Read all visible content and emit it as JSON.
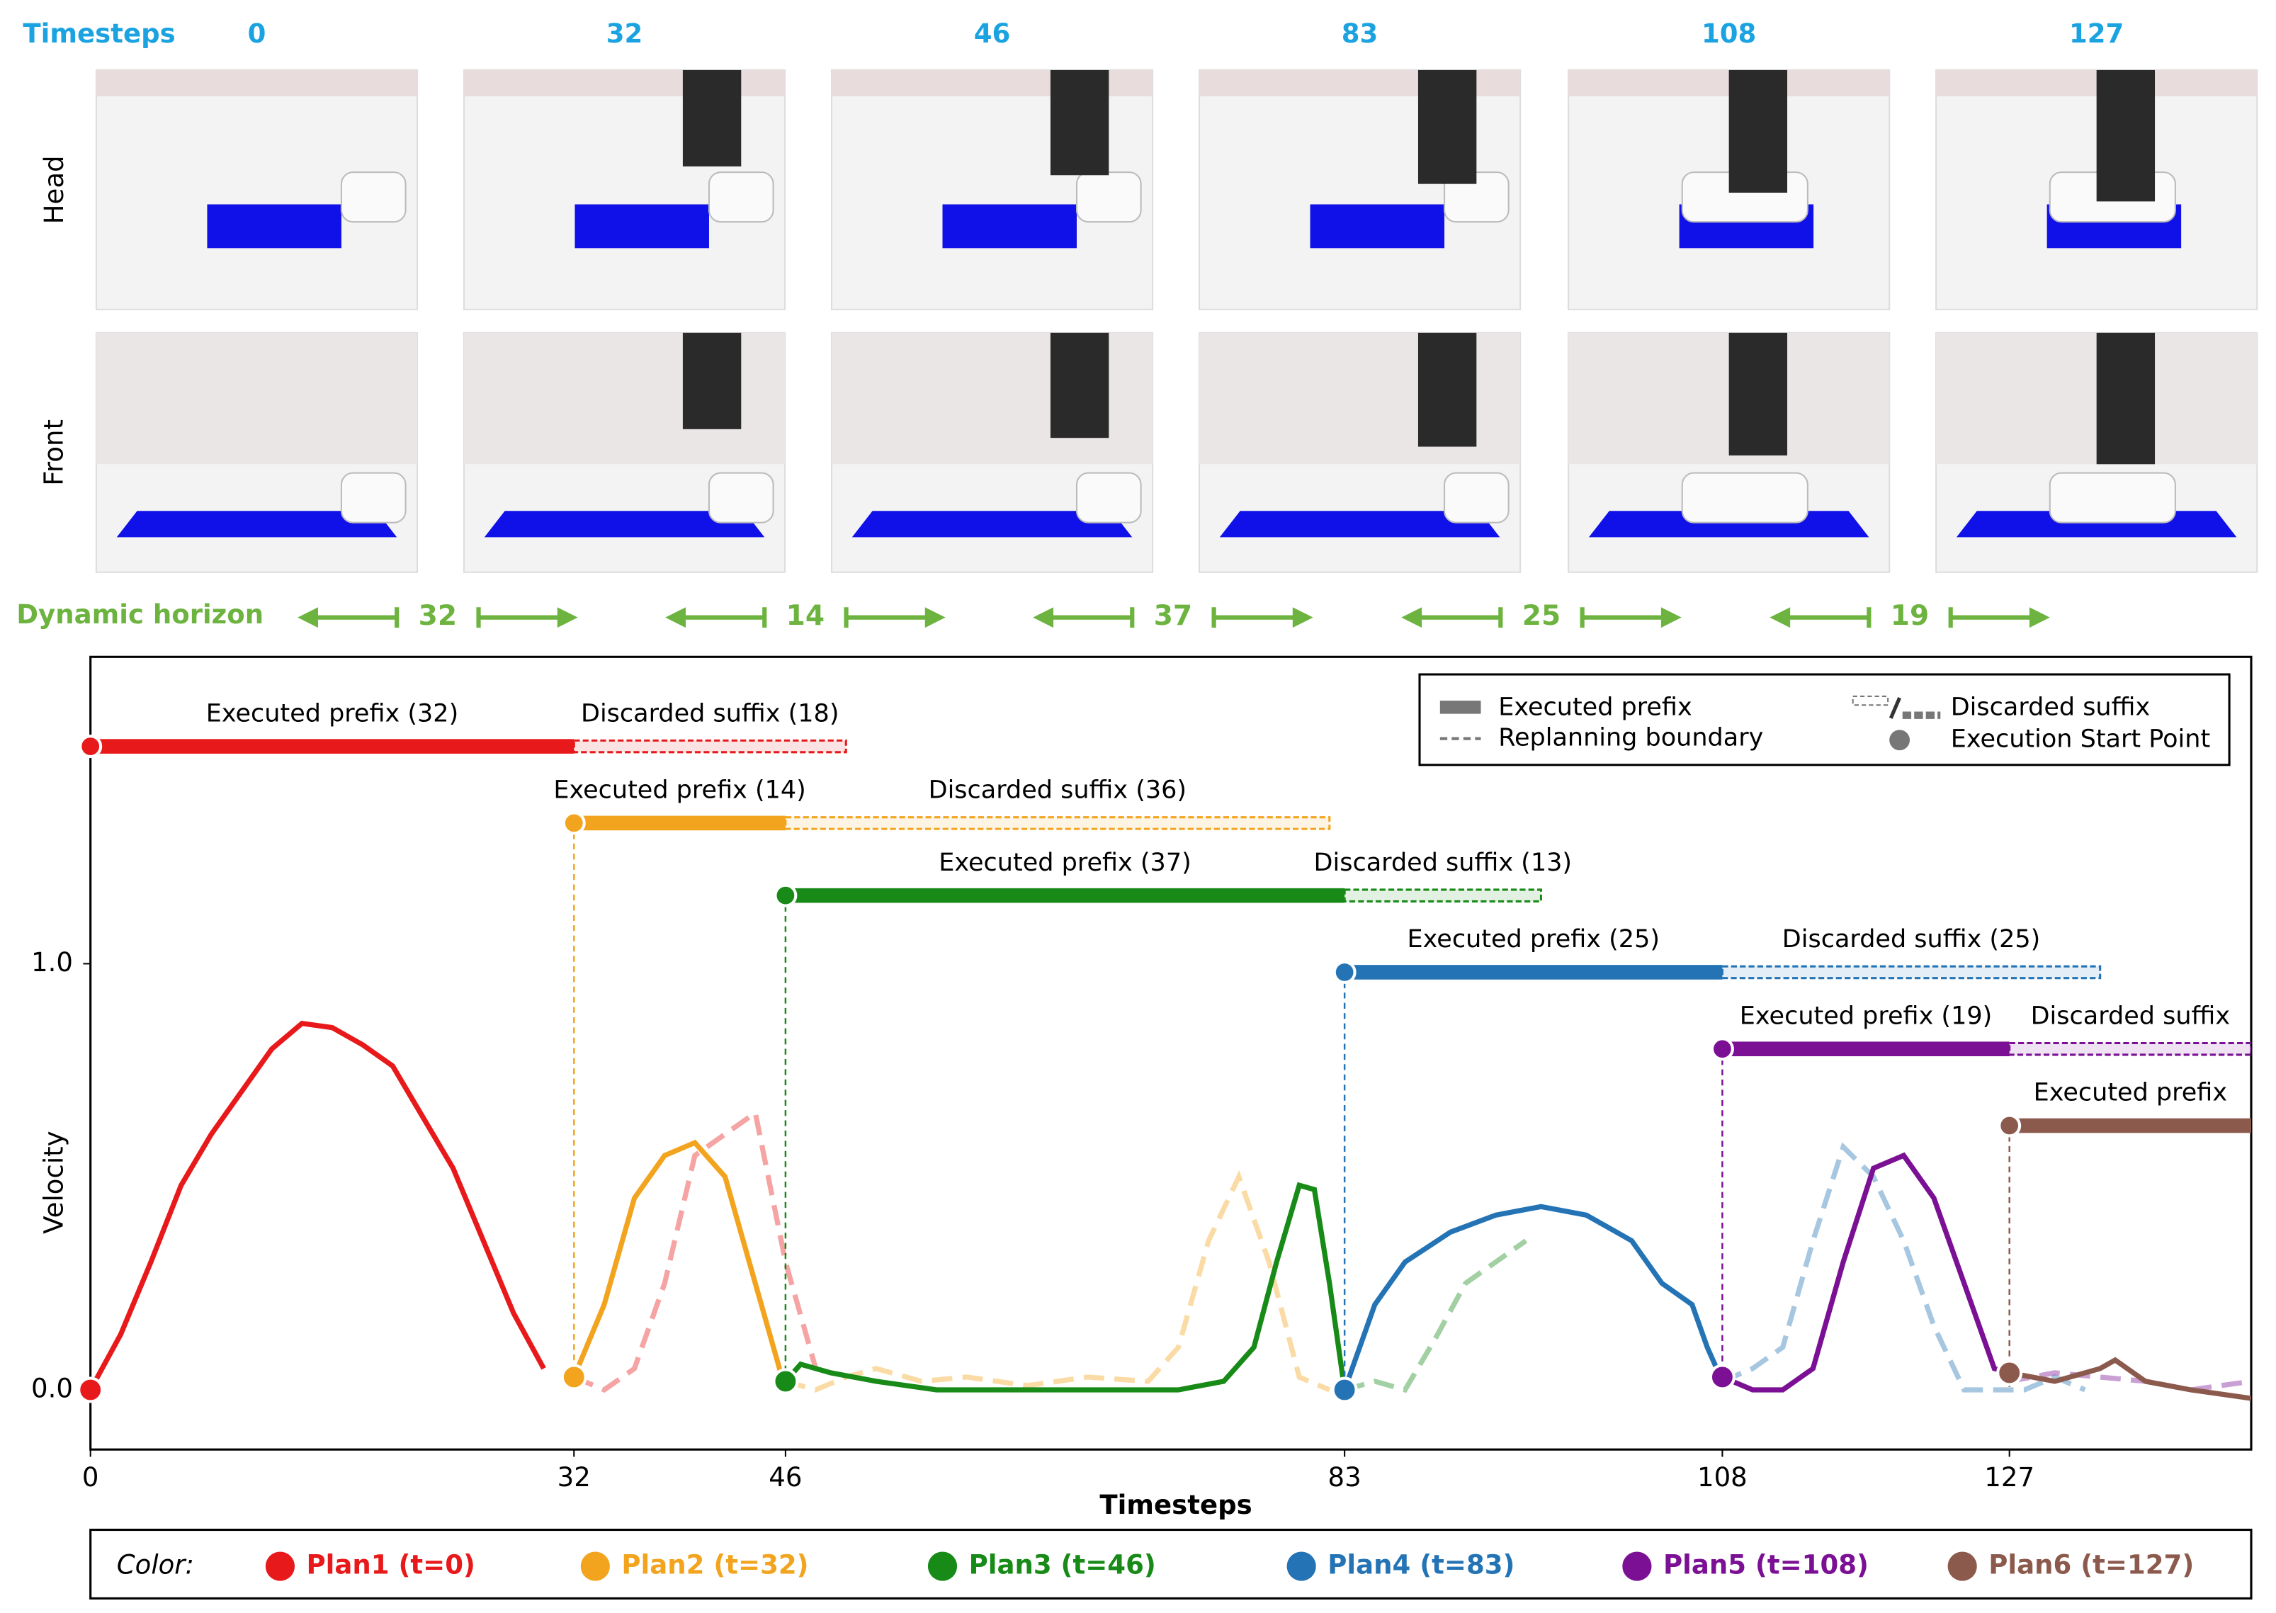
{
  "header": {
    "label": "Timesteps",
    "timesteps": [
      0,
      32,
      46,
      83,
      108,
      127
    ],
    "rows": [
      "Head",
      "Front"
    ]
  },
  "horizon": {
    "label": "Dynamic horizon",
    "values": [
      32,
      14,
      37,
      25,
      19
    ]
  },
  "chart_data": {
    "type": "line",
    "x_label": "Timesteps",
    "y_label": "Velocity",
    "xlim": [
      0,
      143
    ],
    "ylim": [
      -0.14,
      1.72
    ],
    "xticks": [
      0,
      32,
      46,
      83,
      108,
      127
    ],
    "yticks": [
      {
        "value": 0,
        "label": "0.0"
      },
      {
        "value": 1,
        "label": "1.0"
      }
    ],
    "legend": [
      "Executed prefix",
      "Replanning boundary",
      "Discarded suffix",
      "Execution Start Point"
    ],
    "color_legend_label": "Color:",
    "series": [
      {
        "name": "Plan1 (t=0)",
        "color": "#e8191a",
        "start": 0,
        "level": 1.51,
        "prefix": 32,
        "suffix": 18,
        "prefix_label": "Executed prefix (32)",
        "suffix_label": "Discarded suffix (18)",
        "x": [
          0,
          2,
          4,
          6,
          8,
          10,
          12,
          14,
          16,
          18,
          20,
          22,
          24,
          26,
          28,
          30
        ],
        "values": [
          0,
          0.13,
          0.3,
          0.48,
          0.6,
          0.7,
          0.8,
          0.86,
          0.85,
          0.81,
          0.76,
          0.64,
          0.52,
          0.35,
          0.18,
          0.05
        ],
        "discarded_x": [
          32,
          34,
          36,
          38,
          40,
          42,
          44,
          46,
          48
        ],
        "discarded_values": [
          0.03,
          0,
          0.05,
          0.25,
          0.55,
          0.6,
          0.65,
          0.3,
          0.05
        ]
      },
      {
        "name": "Plan2 (t=32)",
        "color": "#f2a41f",
        "start": 32,
        "level": 1.33,
        "prefix": 14,
        "suffix": 36,
        "prefix_label": "Executed prefix (14)",
        "suffix_label": "Discarded suffix (36)",
        "x": [
          32,
          34,
          36,
          38,
          40,
          42,
          44,
          46
        ],
        "values": [
          0.03,
          0.2,
          0.45,
          0.55,
          0.58,
          0.5,
          0.25,
          0
        ],
        "discarded_x": [
          46,
          48,
          50,
          52,
          55,
          58,
          62,
          66,
          70,
          72,
          74,
          76,
          78,
          80,
          82
        ],
        "discarded_values": [
          0.02,
          0,
          0.03,
          0.05,
          0.02,
          0.03,
          0.01,
          0.03,
          0.02,
          0.1,
          0.35,
          0.5,
          0.3,
          0.03,
          0
        ]
      },
      {
        "name": "Plan3 (t=46)",
        "color": "#178a17",
        "start": 46,
        "level": 1.16,
        "prefix": 37,
        "suffix": 13,
        "prefix_label": "Executed prefix (37)",
        "suffix_label": "Discarded suffix (13)",
        "x": [
          46,
          47,
          49,
          52,
          56,
          62,
          68,
          72,
          75,
          77,
          78.5,
          80,
          81,
          82,
          83
        ],
        "values": [
          0.02,
          0.06,
          0.04,
          0.02,
          0,
          0,
          0,
          0,
          0.02,
          0.1,
          0.3,
          0.48,
          0.47,
          0.25,
          0
        ],
        "discarded_x": [
          83,
          85,
          87,
          89,
          91,
          93,
          95
        ],
        "discarded_values": [
          0,
          0.02,
          0,
          0.12,
          0.25,
          0.3,
          0.35
        ]
      },
      {
        "name": "Plan4 (t=83)",
        "color": "#2474b5",
        "start": 83,
        "level": 0.98,
        "prefix": 25,
        "suffix": 25,
        "prefix_label": "Executed prefix (25)",
        "suffix_label": "Discarded suffix (25)",
        "x": [
          83,
          85,
          87,
          90,
          93,
          96,
          99,
          102,
          104,
          106,
          107,
          108
        ],
        "values": [
          0,
          0.2,
          0.3,
          0.37,
          0.41,
          0.43,
          0.41,
          0.35,
          0.25,
          0.2,
          0.1,
          0.02
        ],
        "discarded_x": [
          108,
          110,
          112,
          114,
          116,
          118,
          120,
          122,
          124,
          126,
          128,
          130,
          132
        ],
        "discarded_values": [
          0.02,
          0.05,
          0.1,
          0.35,
          0.57,
          0.5,
          0.35,
          0.15,
          0,
          0,
          0,
          0.03,
          0
        ]
      },
      {
        "name": "Plan5 (t=108)",
        "color": "#7b1094",
        "start": 108,
        "level": 0.8,
        "prefix": 19,
        "suffix": null,
        "prefix_label": "Executed prefix (19)",
        "suffix_label": "Discarded suffix",
        "x": [
          108,
          110,
          112,
          114,
          116,
          118,
          120,
          122,
          124,
          126,
          127
        ],
        "values": [
          0.03,
          0,
          0,
          0.05,
          0.3,
          0.52,
          0.55,
          0.45,
          0.25,
          0.05,
          0.04
        ],
        "discarded_x": [
          127,
          130,
          133,
          136,
          139,
          143
        ],
        "discarded_values": [
          0.02,
          0.04,
          0.03,
          0.02,
          0,
          0.02
        ]
      },
      {
        "name": "Plan6 (t=127)",
        "color": "#8c5a4d",
        "start": 127,
        "level": 0.62,
        "prefix": null,
        "suffix": null,
        "prefix_label": "Executed prefix",
        "suffix_label": null,
        "x": [
          127,
          130,
          133,
          134,
          136,
          139,
          143
        ],
        "values": [
          0.04,
          0.02,
          0.05,
          0.07,
          0.02,
          0,
          -0.02
        ],
        "discarded_x": [],
        "discarded_values": []
      }
    ]
  }
}
